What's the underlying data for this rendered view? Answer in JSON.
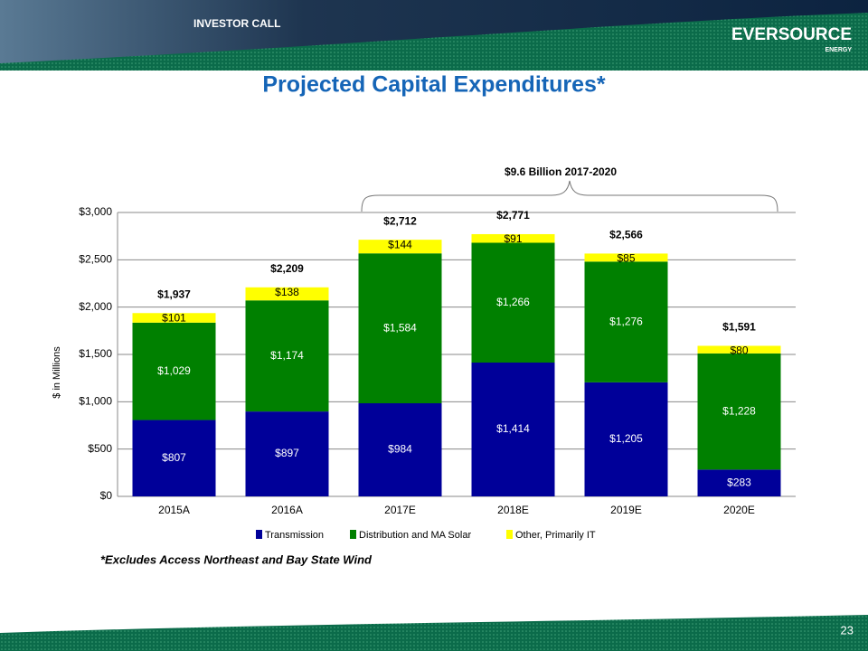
{
  "header": {
    "label": "INVESTOR CALL",
    "logo": "EVERSOURCE",
    "logo_sub": "ENERGY"
  },
  "page_number": "23",
  "footnote": "*Excludes Access Northeast and Bay State Wind",
  "chart_data": {
    "type": "stacked_bar",
    "title": "Projected Capital Expenditures*",
    "annotation": "$9.6 Billion 2017-2020",
    "ylabel": "$ in Millions",
    "categories": [
      "2015A",
      "2016A",
      "2017E",
      "2018E",
      "2019E",
      "2020E"
    ],
    "series": [
      {
        "name": "Transmission",
        "color": "#000099",
        "values": [
          807,
          897,
          984,
          1414,
          1205,
          283
        ],
        "value_labels": [
          "$807",
          "$897",
          "$984",
          "$1,414",
          "$1,205",
          "$283"
        ]
      },
      {
        "name": "Distribution and MA Solar",
        "color": "#008000",
        "values": [
          1029,
          1174,
          1584,
          1266,
          1276,
          1228
        ],
        "value_labels": [
          "$1,029",
          "$1,174",
          "$1,584",
          "$1,266",
          "$1,276",
          "$1,228"
        ]
      },
      {
        "name": "Other, Primarily IT",
        "color": "#ffff00",
        "values": [
          101,
          138,
          144,
          91,
          85,
          80
        ],
        "value_labels": [
          "$101",
          "$138",
          "$144",
          "$91",
          "$85",
          "$80"
        ]
      }
    ],
    "totals": [
      1937,
      2209,
      2712,
      2771,
      2566,
      1591
    ],
    "total_labels": [
      "$1,937",
      "$2,209",
      "$2,712",
      "$2,771",
      "$2,566",
      "$1,591"
    ],
    "ylim": [
      0,
      3000
    ],
    "yticks": [
      {
        "value": 0,
        "label": "$0"
      },
      {
        "value": 500,
        "label": "$500"
      },
      {
        "value": 1000,
        "label": "$1,000"
      },
      {
        "value": 1500,
        "label": "$1,500"
      },
      {
        "value": 2000,
        "label": "$2,000"
      },
      {
        "value": 2500,
        "label": "$2,500"
      },
      {
        "value": 3000,
        "label": "$3,000"
      }
    ],
    "grid": true
  }
}
